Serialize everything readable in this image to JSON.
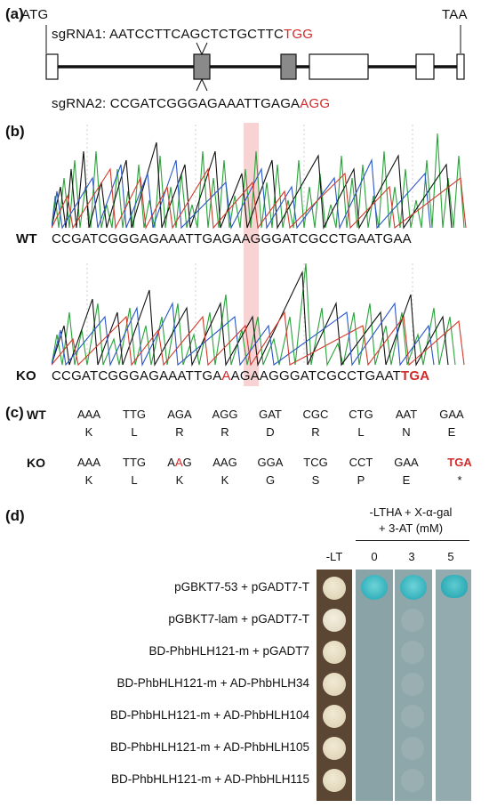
{
  "panel_a": {
    "label": "(a)",
    "start_codon": "ATG",
    "stop_codon": "TAA",
    "sgrna1": {
      "prefix": "sgRNA1: ",
      "seq": "AATCCTTCAGCTCTGCTTC",
      "pam": "TGG"
    },
    "sgrna2": {
      "prefix": "sgRNA2: ",
      "seq": "CCGATCGGGAGAAATTGAGA",
      "pam": "AGG"
    }
  },
  "panel_b": {
    "label": "(b)",
    "wt_label": "WT",
    "wt_seq": "CCGATCGGGAGAAATTGAGAAGGGATCGCCTGAATGAA",
    "ko_label": "KO",
    "ko_seq_a": "CCGATCGGGAGAAATTGA",
    "ko_seq_ins": "A",
    "ko_seq_b": "AGAAGGGATCGCCTGAAT",
    "ko_seq_stop": "TGA"
  },
  "panel_c": {
    "label": "(c)",
    "wt_label": "WT",
    "wt_codons": [
      "AAA",
      "TTG",
      "AGA",
      "AGG",
      "GAT",
      "CGC",
      "CTG",
      "AAT",
      "GAA"
    ],
    "wt_aas": [
      "K",
      "L",
      "R",
      "R",
      "D",
      "R",
      "L",
      "N",
      "E"
    ],
    "ko_label": "KO",
    "ko_codons": [
      "AAA",
      "TTG",
      "",
      "AAG",
      "GGA",
      "TCG",
      "CCT",
      "GAA",
      "TGA"
    ],
    "ko_codon3": {
      "a": "A",
      "b": "A",
      "c": "G"
    },
    "ko_aas": [
      "K",
      "L",
      "K",
      "K",
      "G",
      "S",
      "P",
      "E",
      "*"
    ]
  },
  "panel_d": {
    "label": "(d)",
    "selection_header_line1": "-LTHA + X-α-gal",
    "selection_header_line2": "+ 3-AT (mM)",
    "col_lt": "-LT",
    "col_0": "0",
    "col_3": "3",
    "col_5": "5",
    "constructs": [
      "pGBKT7-53 + pGADT7-T",
      "pGBKT7-lam + pGADT7-T",
      "BD-PhbHLH121-m + pGADT7",
      "BD-PhbHLH121-m + AD-PhbHLH34",
      "BD-PhbHLH121-m + AD-PhbHLH104",
      "BD-PhbHLH121-m + AD-PhbHLH105",
      "BD-PhbHLH121-m + AD-PhbHLH115"
    ],
    "colors": {
      "plate_lt": "#5b4634",
      "plate_sel": "#8aa3a6",
      "colony_lt": "#e6dcc2",
      "colony_blue": "#24a8b4"
    }
  }
}
